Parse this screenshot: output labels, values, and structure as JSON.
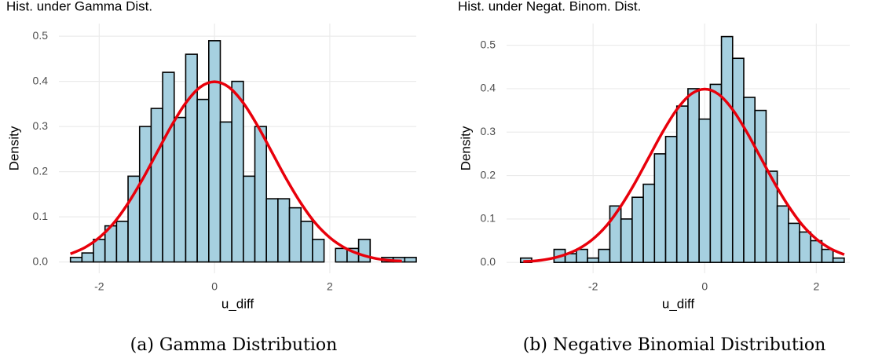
{
  "chart_data": [
    {
      "type": "histogram",
      "title": "Hist. under Gamma Dist.",
      "caption": "(a) Gamma Distribution",
      "xlabel": "u_diff",
      "ylabel": "Density",
      "bins": [
        -2.5,
        -2.3,
        -2.1,
        -1.9,
        -1.7,
        -1.5,
        -1.3,
        -1.1,
        -0.9,
        -0.7,
        -0.5,
        -0.3,
        -0.1,
        0.1,
        0.3,
        0.5,
        0.7,
        0.9,
        1.1,
        1.3,
        1.5,
        1.7,
        1.9,
        2.1,
        2.3,
        2.5,
        2.7,
        2.9,
        3.1,
        3.3,
        3.5
      ],
      "values": [
        0.01,
        0.02,
        0.05,
        0.08,
        0.09,
        0.19,
        0.3,
        0.34,
        0.42,
        0.32,
        0.46,
        0.36,
        0.49,
        0.31,
        0.4,
        0.19,
        0.3,
        0.14,
        0.14,
        0.12,
        0.09,
        0.05,
        0.0,
        0.03,
        0.03,
        0.05,
        0.0,
        0.01,
        0.01,
        0.01
      ],
      "color": "#a6d0e0",
      "edgecolor": "#000000",
      "overlay": {
        "type": "line",
        "color": "#e8000b",
        "x": [
          -2.5,
          -2.25,
          -2,
          -1.75,
          -1.5,
          -1.25,
          -1,
          -0.75,
          -0.5,
          -0.25,
          0,
          0.25,
          0.5,
          0.75,
          1,
          1.25,
          1.5,
          1.75,
          2,
          2.25,
          2.5,
          2.75,
          3,
          3.25
        ],
        "values": [
          0.018,
          0.032,
          0.054,
          0.086,
          0.13,
          0.183,
          0.242,
          0.301,
          0.352,
          0.387,
          0.399,
          0.387,
          0.352,
          0.301,
          0.242,
          0.183,
          0.13,
          0.086,
          0.054,
          0.032,
          0.018,
          0.009,
          0.004,
          0.002
        ]
      },
      "xlim": [
        -2.7,
        3.5
      ],
      "ylim": [
        -0.025,
        0.528
      ],
      "xticks": [
        -2,
        0,
        2
      ],
      "yticks": [
        {
          "value": 0,
          "label": "0.0"
        },
        0.1,
        0.2,
        0.3,
        0.4,
        0.5
      ],
      "grid": true
    },
    {
      "type": "histogram",
      "title": "Hist. under Negat. Binom. Dist.",
      "caption": "(b) Negative Binomial Distribution",
      "xlabel": "u_diff",
      "ylabel": "Density",
      "bins": [
        -3.3,
        -3.1,
        -2.9,
        -2.7,
        -2.5,
        -2.3,
        -2.1,
        -1.9,
        -1.7,
        -1.5,
        -1.3,
        -1.1,
        -0.9,
        -0.7,
        -0.5,
        -0.3,
        -0.1,
        0.1,
        0.3,
        0.5,
        0.7,
        0.9,
        1.1,
        1.3,
        1.5,
        1.7,
        1.9,
        2.1,
        2.3,
        2.5
      ],
      "values": [
        0.01,
        0.0,
        0.0,
        0.03,
        0.02,
        0.03,
        0.01,
        0.03,
        0.13,
        0.1,
        0.15,
        0.18,
        0.25,
        0.29,
        0.36,
        0.4,
        0.33,
        0.41,
        0.52,
        0.47,
        0.38,
        0.35,
        0.21,
        0.13,
        0.09,
        0.07,
        0.05,
        0.03,
        0.01
      ],
      "color": "#a6d0e0",
      "edgecolor": "#000000",
      "overlay": {
        "type": "line",
        "color": "#e8000b",
        "x": [
          -3.25,
          -3,
          -2.75,
          -2.5,
          -2.25,
          -2,
          -1.75,
          -1.5,
          -1.25,
          -1,
          -0.75,
          -0.5,
          -0.25,
          0,
          0.25,
          0.5,
          0.75,
          1,
          1.25,
          1.5,
          1.75,
          2,
          2.25,
          2.5
        ],
        "values": [
          0.002,
          0.004,
          0.009,
          0.018,
          0.032,
          0.054,
          0.086,
          0.13,
          0.183,
          0.242,
          0.301,
          0.352,
          0.387,
          0.399,
          0.387,
          0.352,
          0.301,
          0.242,
          0.183,
          0.13,
          0.086,
          0.054,
          0.032,
          0.018
        ]
      },
      "xlim": [
        -3.55,
        2.6
      ],
      "ylim": [
        -0.025,
        0.55
      ],
      "xticks": [
        -2,
        0,
        2
      ],
      "yticks": [
        {
          "value": 0,
          "label": "0.0"
        },
        0.1,
        0.2,
        0.3,
        0.4,
        0.5
      ],
      "grid": true
    }
  ]
}
